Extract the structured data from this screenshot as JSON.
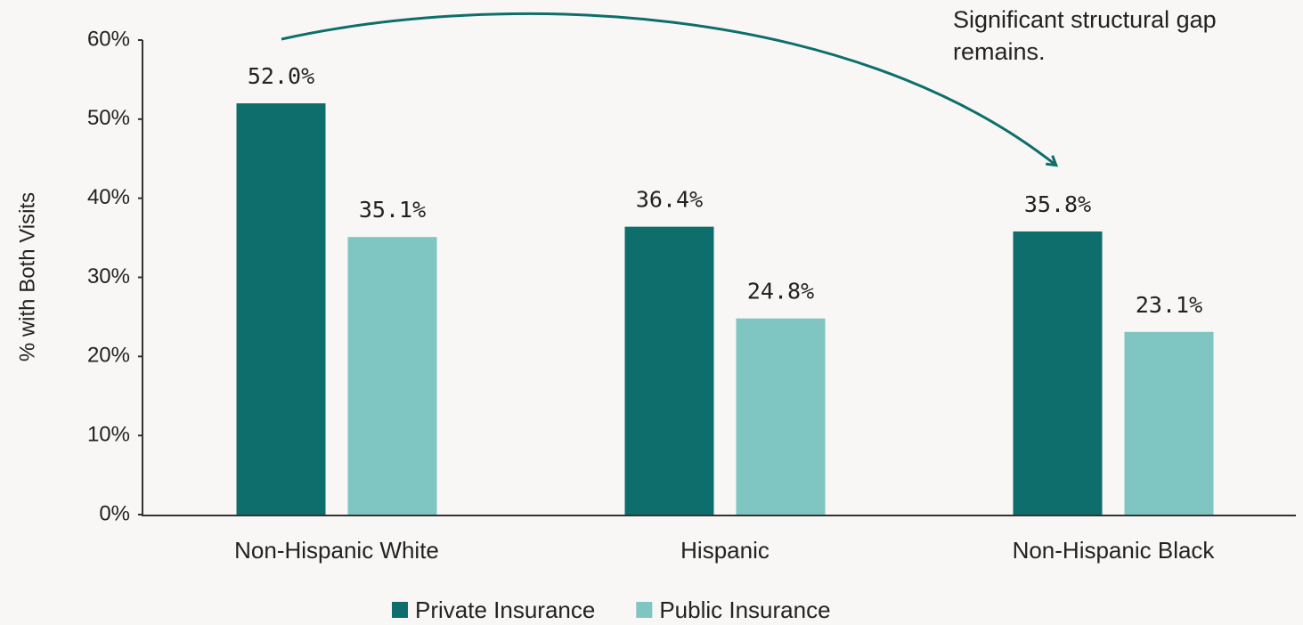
{
  "chart_data": {
    "type": "bar",
    "annotation": "Significant structural gap remains.",
    "y_label": "% with Both Visits",
    "categories": [
      "Non-Hispanic White",
      "Hispanic",
      "Non-Hispanic Black"
    ],
    "series": [
      {
        "name": "Private Insurance",
        "color": "#0e6e6b",
        "values": [
          52.0,
          36.4,
          35.8
        ],
        "value_labels": [
          "52.0%",
          "36.4%",
          "35.8%"
        ]
      },
      {
        "name": "Public Insurance",
        "color": "#7fc6c2",
        "values": [
          35.1,
          24.8,
          23.1
        ],
        "value_labels": [
          "35.1%",
          "24.8%",
          "23.1%"
        ]
      }
    ],
    "ylim": [
      0,
      60
    ],
    "yticks": [
      {
        "value": 0,
        "label": "0%"
      },
      {
        "value": 10,
        "label": "10%"
      },
      {
        "value": 20,
        "label": "20%"
      },
      {
        "value": 30,
        "label": "30%"
      },
      {
        "value": 40,
        "label": "40%"
      },
      {
        "value": 50,
        "label": "50%"
      },
      {
        "value": 60,
        "label": "60%"
      }
    ],
    "grid": false
  }
}
